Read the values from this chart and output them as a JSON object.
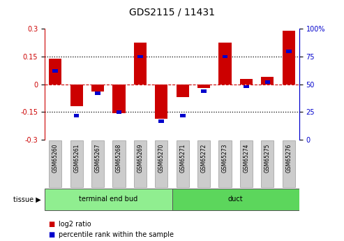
{
  "title": "GDS2115 / 11431",
  "samples": [
    "GSM65260",
    "GSM65261",
    "GSM65267",
    "GSM65268",
    "GSM65269",
    "GSM65270",
    "GSM65271",
    "GSM65272",
    "GSM65273",
    "GSM65274",
    "GSM65275",
    "GSM65276"
  ],
  "log2_ratio": [
    0.14,
    -0.12,
    -0.04,
    -0.155,
    0.225,
    -0.185,
    -0.07,
    -0.02,
    0.225,
    0.03,
    0.04,
    0.29
  ],
  "percentile_rank": [
    62,
    22,
    42,
    25,
    75,
    17,
    22,
    44,
    75,
    48,
    52,
    80
  ],
  "tissue_groups": [
    {
      "label": "terminal end bud",
      "start": 0,
      "end": 6,
      "color": "#90EE90"
    },
    {
      "label": "duct",
      "start": 6,
      "end": 12,
      "color": "#5CD65C"
    }
  ],
  "ylim": [
    -0.3,
    0.3
  ],
  "yticks_left": [
    -0.3,
    -0.15,
    0.0,
    0.15,
    0.3
  ],
  "yticks_right": [
    0,
    25,
    50,
    75,
    100
  ],
  "left_axis_color": "#CC0000",
  "right_axis_color": "#0000CC",
  "bar_color": "#CC0000",
  "blue_color": "#0000CC",
  "hline_color": "#CC0000",
  "dotted_color": "black",
  "bar_width": 0.6,
  "blue_bar_width": 0.25,
  "bg_color": "#FFFFFF",
  "plot_bg": "#FFFFFF",
  "sample_box_color": "#CCCCCC",
  "tissue_label": "tissue",
  "legend_log2": "log2 ratio",
  "legend_pct": "percentile rank within the sample"
}
